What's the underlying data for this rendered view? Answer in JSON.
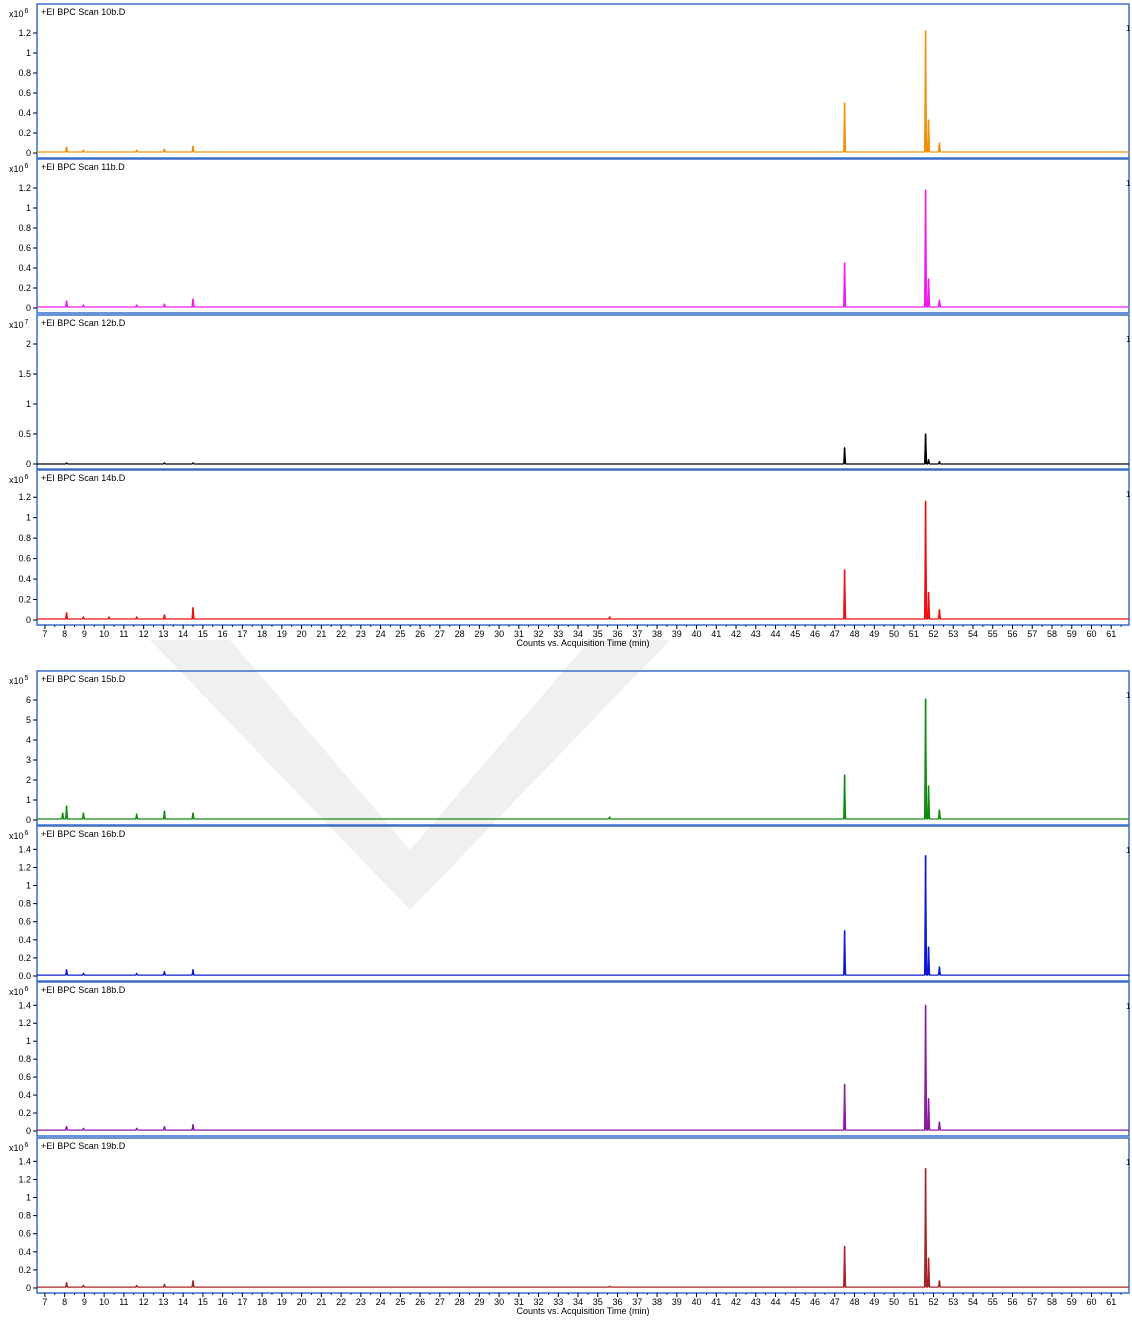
{
  "axis": {
    "x_title": "Counts vs. Acquisition Time (min)",
    "x_ticks": [
      7,
      8,
      9,
      10,
      11,
      12,
      13,
      14,
      15,
      16,
      17,
      18,
      19,
      20,
      21,
      22,
      23,
      24,
      25,
      26,
      27,
      28,
      29,
      30,
      31,
      32,
      33,
      34,
      35,
      36,
      37,
      38,
      39,
      40,
      41,
      42,
      43,
      44,
      45,
      46,
      47,
      48,
      49,
      50,
      51,
      52,
      53,
      54,
      55,
      56,
      57,
      58,
      59,
      60,
      61
    ],
    "x_range": [
      6.6,
      61.9
    ]
  },
  "chart_data": [
    {
      "type": "line",
      "title": "+EI BPC Scan 10b.D",
      "multiplier": "x10",
      "exponent": "6",
      "color": "#f0920f",
      "y_ticks": [
        0,
        0.2,
        0.4,
        0.6,
        0.8,
        1,
        1.2
      ],
      "y_tick_labels": [
        "0",
        "0.2",
        "0.4",
        "0.6",
        "0.8",
        "1",
        "1.2"
      ],
      "ylim": [
        0,
        1.32
      ],
      "baseline": 0.01,
      "peaks": [
        [
          8.1,
          0.06
        ],
        [
          8.95,
          0.03
        ],
        [
          11.65,
          0.03
        ],
        [
          13.05,
          0.04
        ],
        [
          14.5,
          0.07
        ],
        [
          47.5,
          0.5
        ],
        [
          51.6,
          1.22
        ],
        [
          51.75,
          0.33
        ],
        [
          52.3,
          0.1
        ]
      ]
    },
    {
      "type": "line",
      "title": "+EI BPC Scan 11b.D",
      "multiplier": "x10",
      "exponent": "6",
      "color": "#f218f2",
      "y_ticks": [
        0,
        0.2,
        0.4,
        0.6,
        0.8,
        1,
        1.2
      ],
      "y_tick_labels": [
        "0",
        "0.2",
        "0.4",
        "0.6",
        "0.8",
        "1",
        "1.2"
      ],
      "ylim": [
        0,
        1.32
      ],
      "baseline": 0.01,
      "peaks": [
        [
          8.1,
          0.07
        ],
        [
          8.95,
          0.03
        ],
        [
          11.65,
          0.03
        ],
        [
          13.05,
          0.04
        ],
        [
          14.5,
          0.09
        ],
        [
          47.5,
          0.45
        ],
        [
          51.6,
          1.18
        ],
        [
          51.75,
          0.29
        ],
        [
          52.3,
          0.08
        ]
      ]
    },
    {
      "type": "line",
      "title": "+EI BPC Scan 12b.D",
      "multiplier": "x10",
      "exponent": "7",
      "color": "#000000",
      "y_ticks": [
        0,
        0.5,
        1,
        1.5,
        2
      ],
      "y_tick_labels": [
        "0",
        "0.5",
        "1",
        "1.5",
        "2"
      ],
      "ylim": [
        0,
        2.2
      ],
      "baseline": 0.0,
      "peaks": [
        [
          8.1,
          0.02
        ],
        [
          13.05,
          0.02
        ],
        [
          14.5,
          0.02
        ],
        [
          47.5,
          0.27
        ],
        [
          51.6,
          0.5
        ],
        [
          51.75,
          0.07
        ],
        [
          52.3,
          0.04
        ]
      ]
    },
    {
      "type": "line",
      "title": "+EI BPC Scan 14b.D",
      "multiplier": "x10",
      "exponent": "6",
      "color": "#ee1010",
      "y_ticks": [
        0,
        0.2,
        0.4,
        0.6,
        0.8,
        1,
        1.2
      ],
      "y_tick_labels": [
        "0",
        "0.2",
        "0.4",
        "0.6",
        "0.8",
        "1",
        "1.2"
      ],
      "ylim": [
        0,
        1.3
      ],
      "baseline": 0.01,
      "peaks": [
        [
          8.1,
          0.07
        ],
        [
          8.95,
          0.03
        ],
        [
          10.25,
          0.03
        ],
        [
          11.65,
          0.03
        ],
        [
          13.05,
          0.05
        ],
        [
          14.5,
          0.12
        ],
        [
          35.6,
          0.03
        ],
        [
          47.5,
          0.49
        ],
        [
          51.6,
          1.16
        ],
        [
          51.75,
          0.27
        ],
        [
          52.3,
          0.1
        ]
      ]
    },
    {
      "type": "line",
      "title": "+EI BPC Scan 15b.D",
      "multiplier": "x10",
      "exponent": "5",
      "color": "#108c10",
      "y_ticks": [
        0,
        1,
        2,
        3,
        4,
        5,
        6
      ],
      "y_tick_labels": [
        "0",
        "1",
        "2",
        "3",
        "4",
        "5",
        "6"
      ],
      "ylim": [
        0,
        6.6
      ],
      "baseline": 0.05,
      "peaks": [
        [
          7.9,
          0.35
        ],
        [
          8.1,
          0.7
        ],
        [
          8.95,
          0.35
        ],
        [
          11.65,
          0.3
        ],
        [
          13.05,
          0.45
        ],
        [
          14.5,
          0.35
        ],
        [
          35.6,
          0.15
        ],
        [
          47.5,
          2.25
        ],
        [
          51.6,
          6.05
        ],
        [
          51.75,
          1.7
        ],
        [
          52.3,
          0.5
        ]
      ]
    },
    {
      "type": "line",
      "title": "+EI BPC Scan 16b.D",
      "multiplier": "x10",
      "exponent": "6",
      "color": "#0c1bd6",
      "y_ticks": [
        0,
        0.2,
        0.4,
        0.6,
        0.8,
        1,
        1.2,
        1.4
      ],
      "y_tick_labels": [
        "0.0",
        "0.2",
        "0.4",
        "0.6",
        "0.8",
        "1",
        "1.2",
        "1.4"
      ],
      "ylim": [
        0,
        1.47
      ],
      "baseline": 0.01,
      "peaks": [
        [
          8.1,
          0.07
        ],
        [
          8.95,
          0.03
        ],
        [
          11.65,
          0.03
        ],
        [
          13.05,
          0.05
        ],
        [
          14.5,
          0.07
        ],
        [
          47.5,
          0.5
        ],
        [
          51.6,
          1.33
        ],
        [
          51.75,
          0.32
        ],
        [
          52.3,
          0.1
        ]
      ]
    },
    {
      "type": "line",
      "title": "+EI BPC Scan 18b.D",
      "multiplier": "x10",
      "exponent": "6",
      "color": "#8a1aa0",
      "y_ticks": [
        0,
        0.2,
        0.4,
        0.6,
        0.8,
        1,
        1.2,
        1.4
      ],
      "y_tick_labels": [
        "0",
        "0.2",
        "0.4",
        "0.6",
        "0.8",
        "1",
        "1.2",
        "1.4"
      ],
      "ylim": [
        0,
        1.47
      ],
      "baseline": 0.01,
      "peaks": [
        [
          8.1,
          0.05
        ],
        [
          8.95,
          0.03
        ],
        [
          11.65,
          0.03
        ],
        [
          13.05,
          0.05
        ],
        [
          14.5,
          0.07
        ],
        [
          47.5,
          0.52
        ],
        [
          51.6,
          1.4
        ],
        [
          51.75,
          0.36
        ],
        [
          52.3,
          0.1
        ]
      ]
    },
    {
      "type": "line",
      "title": "+EI BPC Scan 19b.D",
      "multiplier": "x10",
      "exponent": "6",
      "color": "#a82424",
      "y_ticks": [
        0,
        0.2,
        0.4,
        0.6,
        0.8,
        1,
        1.2,
        1.4
      ],
      "y_tick_labels": [
        "0",
        "0.2",
        "0.4",
        "0.6",
        "0.8",
        "1",
        "1.2",
        "1.4"
      ],
      "ylim": [
        0,
        1.47
      ],
      "baseline": 0.01,
      "peaks": [
        [
          8.1,
          0.06
        ],
        [
          8.95,
          0.03
        ],
        [
          11.65,
          0.03
        ],
        [
          13.05,
          0.04
        ],
        [
          14.5,
          0.08
        ],
        [
          35.6,
          0.02
        ],
        [
          47.5,
          0.46
        ],
        [
          51.6,
          1.32
        ],
        [
          51.75,
          0.33
        ],
        [
          52.3,
          0.08
        ]
      ]
    }
  ]
}
